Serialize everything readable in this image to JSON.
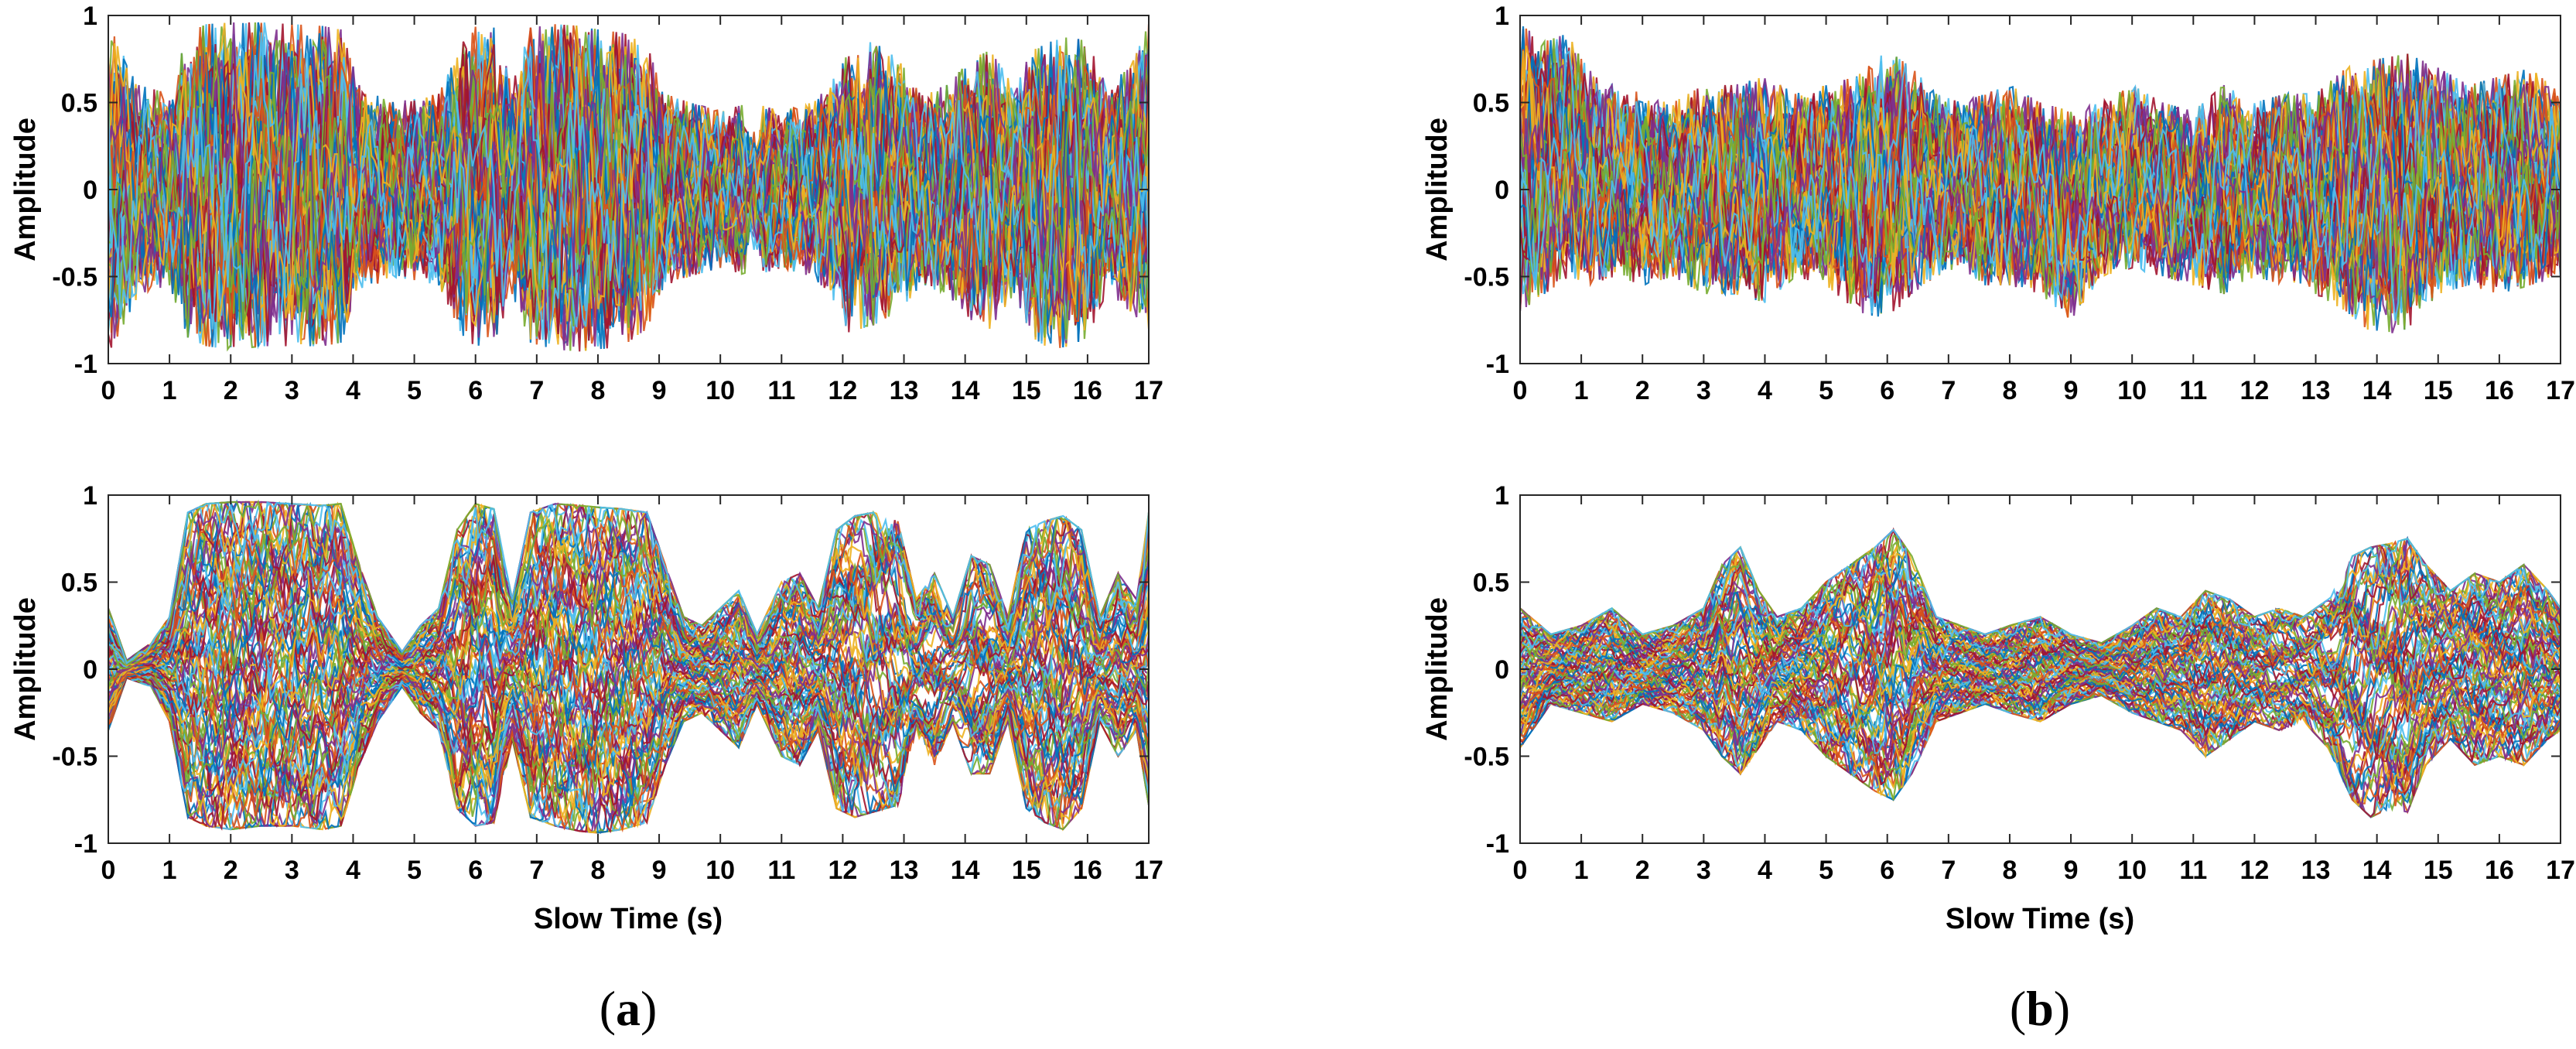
{
  "chart_data": [
    {
      "type": "line",
      "panel": "a-top",
      "ylabel": "Amplitude",
      "xlabel": "",
      "xlim": [
        0,
        17
      ],
      "ylim": [
        -1,
        1
      ],
      "xticks": [
        0,
        1,
        2,
        3,
        4,
        5,
        6,
        7,
        8,
        9,
        10,
        11,
        12,
        13,
        14,
        15,
        16,
        17
      ],
      "yticks": [
        -1,
        -0.5,
        0,
        0.5,
        1
      ],
      "grid": false,
      "envelope": {
        "x": [
          0,
          0.5,
          1,
          1.3,
          1.6,
          2,
          2.5,
          3,
          3.5,
          3.8,
          4.1,
          4.6,
          5,
          5.4,
          5.8,
          6,
          6.3,
          6.6,
          6.9,
          7.3,
          7.7,
          8,
          8.4,
          8.8,
          9.1,
          9.5,
          10,
          10.5,
          11,
          11.5,
          11.8,
          12.1,
          12.5,
          12.9,
          13.3,
          13.7,
          14.1,
          14.4,
          14.8,
          15.1,
          15.4,
          15.7,
          16,
          16.3,
          16.7,
          17
        ],
        "upper": [
          0.95,
          0.6,
          0.55,
          0.9,
          0.95,
          0.96,
          0.96,
          0.95,
          0.94,
          0.92,
          0.6,
          0.5,
          0.52,
          0.55,
          0.85,
          0.95,
          0.93,
          0.6,
          0.93,
          0.95,
          0.94,
          0.92,
          0.9,
          0.85,
          0.55,
          0.5,
          0.45,
          0.5,
          0.45,
          0.5,
          0.6,
          0.82,
          0.85,
          0.75,
          0.55,
          0.6,
          0.75,
          0.8,
          0.6,
          0.8,
          0.85,
          0.88,
          0.85,
          0.6,
          0.7,
          0.95
        ],
        "lower": [
          -0.95,
          -0.6,
          -0.55,
          -0.85,
          -0.9,
          -0.92,
          -0.9,
          -0.9,
          -0.9,
          -0.88,
          -0.6,
          -0.5,
          -0.52,
          -0.55,
          -0.85,
          -0.9,
          -0.88,
          -0.6,
          -0.88,
          -0.92,
          -0.93,
          -0.92,
          -0.9,
          -0.8,
          -0.55,
          -0.5,
          -0.45,
          -0.5,
          -0.45,
          -0.5,
          -0.6,
          -0.82,
          -0.78,
          -0.7,
          -0.55,
          -0.6,
          -0.75,
          -0.8,
          -0.6,
          -0.85,
          -0.92,
          -0.9,
          -0.85,
          -0.6,
          -0.7,
          -0.8
        ]
      }
    },
    {
      "type": "line",
      "panel": "a-bottom",
      "ylabel": "Amplitude",
      "xlabel": "Slow Time (s)",
      "xlim": [
        0,
        17
      ],
      "ylim": [
        -1,
        1
      ],
      "xticks": [
        0,
        1,
        2,
        3,
        4,
        5,
        6,
        7,
        8,
        9,
        10,
        11,
        12,
        13,
        14,
        15,
        16,
        17
      ],
      "yticks": [
        -1,
        -0.5,
        0,
        0.5,
        1
      ],
      "grid": false,
      "envelope": {
        "x": [
          0,
          0.3,
          0.7,
          1,
          1.3,
          1.6,
          2,
          2.5,
          3,
          3.5,
          3.8,
          4.1,
          4.4,
          4.8,
          5.1,
          5.4,
          5.7,
          6,
          6.3,
          6.6,
          6.9,
          7.3,
          7.7,
          8,
          8.4,
          8.8,
          9.1,
          9.4,
          9.7,
          10,
          10.3,
          10.6,
          11,
          11.3,
          11.6,
          11.9,
          12.2,
          12.5,
          12.9,
          13.2,
          13.5,
          13.8,
          14.1,
          14.4,
          14.7,
          15,
          15.3,
          15.6,
          15.9,
          16.2,
          16.5,
          16.8,
          17
        ],
        "upper": [
          0.35,
          0.05,
          0.15,
          0.3,
          0.9,
          0.95,
          0.96,
          0.96,
          0.95,
          0.94,
          0.95,
          0.6,
          0.3,
          0.1,
          0.25,
          0.35,
          0.8,
          0.95,
          0.92,
          0.4,
          0.9,
          0.95,
          0.94,
          0.93,
          0.92,
          0.9,
          0.6,
          0.3,
          0.25,
          0.35,
          0.45,
          0.2,
          0.5,
          0.55,
          0.35,
          0.8,
          0.88,
          0.9,
          0.85,
          0.4,
          0.55,
          0.3,
          0.65,
          0.6,
          0.3,
          0.8,
          0.85,
          0.88,
          0.8,
          0.3,
          0.55,
          0.4,
          0.9
        ],
        "lower": [
          -0.35,
          -0.05,
          -0.1,
          -0.3,
          -0.85,
          -0.9,
          -0.92,
          -0.9,
          -0.9,
          -0.92,
          -0.9,
          -0.55,
          -0.3,
          -0.1,
          -0.25,
          -0.35,
          -0.8,
          -0.9,
          -0.88,
          -0.4,
          -0.85,
          -0.9,
          -0.93,
          -0.94,
          -0.92,
          -0.88,
          -0.55,
          -0.3,
          -0.25,
          -0.35,
          -0.45,
          -0.2,
          -0.5,
          -0.55,
          -0.35,
          -0.8,
          -0.85,
          -0.82,
          -0.78,
          -0.4,
          -0.55,
          -0.3,
          -0.6,
          -0.6,
          -0.3,
          -0.8,
          -0.88,
          -0.92,
          -0.8,
          -0.3,
          -0.5,
          -0.35,
          -0.78
        ]
      }
    },
    {
      "type": "line",
      "panel": "b-top",
      "ylabel": "Amplitude",
      "xlabel": "",
      "xlim": [
        0,
        17
      ],
      "ylim": [
        -1,
        1
      ],
      "xticks": [
        0,
        1,
        2,
        3,
        4,
        5,
        6,
        7,
        8,
        9,
        10,
        11,
        12,
        13,
        14,
        15,
        16,
        17
      ],
      "yticks": [
        -1,
        -0.5,
        0,
        0.5,
        1
      ],
      "grid": false,
      "envelope": {
        "x": [
          0,
          0.4,
          0.8,
          1.2,
          1.6,
          2,
          2.5,
          3,
          3.5,
          4,
          4.5,
          5,
          5.5,
          6,
          6.4,
          6.8,
          7.2,
          7.6,
          8,
          8.5,
          9,
          9.5,
          10,
          10.5,
          11,
          11.5,
          12,
          12.5,
          13,
          13.5,
          14,
          14.5,
          15,
          15.5,
          16,
          16.5,
          17
        ],
        "upper": [
          0.95,
          0.85,
          0.9,
          0.65,
          0.6,
          0.55,
          0.5,
          0.6,
          0.6,
          0.65,
          0.55,
          0.6,
          0.65,
          0.8,
          0.7,
          0.55,
          0.5,
          0.55,
          0.6,
          0.5,
          0.45,
          0.5,
          0.6,
          0.5,
          0.45,
          0.6,
          0.5,
          0.55,
          0.55,
          0.7,
          0.75,
          0.78,
          0.7,
          0.6,
          0.65,
          0.7,
          0.55
        ],
        "lower": [
          -0.7,
          -0.6,
          -0.5,
          -0.55,
          -0.5,
          -0.55,
          -0.5,
          -0.6,
          -0.6,
          -0.65,
          -0.5,
          -0.55,
          -0.7,
          -0.75,
          -0.6,
          -0.5,
          -0.45,
          -0.55,
          -0.55,
          -0.6,
          -0.75,
          -0.5,
          -0.45,
          -0.5,
          -0.55,
          -0.6,
          -0.5,
          -0.55,
          -0.6,
          -0.7,
          -0.85,
          -0.8,
          -0.6,
          -0.55,
          -0.6,
          -0.55,
          -0.5
        ]
      }
    },
    {
      "type": "line",
      "panel": "b-bottom",
      "ylabel": "Amplitude",
      "xlabel": "Slow Time (s)",
      "xlim": [
        0,
        17
      ],
      "ylim": [
        -1,
        1
      ],
      "xticks": [
        0,
        1,
        2,
        3,
        4,
        5,
        6,
        7,
        8,
        9,
        10,
        11,
        12,
        13,
        14,
        15,
        16,
        17
      ],
      "yticks": [
        -1,
        -0.5,
        0,
        0.5,
        1
      ],
      "grid": false,
      "envelope": {
        "x": [
          0,
          0.5,
          1,
          1.5,
          2,
          2.5,
          3,
          3.3,
          3.6,
          3.9,
          4.2,
          4.6,
          5,
          5.4,
          5.8,
          6.1,
          6.4,
          6.8,
          7.2,
          7.6,
          8,
          8.5,
          9,
          9.5,
          10,
          10.4,
          10.8,
          11.2,
          11.6,
          12,
          12.4,
          12.8,
          13.2,
          13.6,
          13.9,
          14.2,
          14.5,
          14.8,
          15.2,
          15.6,
          16,
          16.4,
          16.8,
          17
        ],
        "upper": [
          0.35,
          0.2,
          0.25,
          0.35,
          0.2,
          0.25,
          0.35,
          0.6,
          0.7,
          0.45,
          0.3,
          0.35,
          0.5,
          0.6,
          0.7,
          0.8,
          0.65,
          0.3,
          0.25,
          0.2,
          0.25,
          0.3,
          0.2,
          0.15,
          0.25,
          0.35,
          0.3,
          0.45,
          0.4,
          0.3,
          0.35,
          0.3,
          0.4,
          0.65,
          0.7,
          0.72,
          0.75,
          0.6,
          0.45,
          0.55,
          0.5,
          0.6,
          0.45,
          0.35
        ],
        "lower": [
          -0.45,
          -0.2,
          -0.25,
          -0.3,
          -0.2,
          -0.25,
          -0.35,
          -0.5,
          -0.6,
          -0.45,
          -0.3,
          -0.35,
          -0.5,
          -0.6,
          -0.7,
          -0.75,
          -0.6,
          -0.3,
          -0.25,
          -0.2,
          -0.25,
          -0.3,
          -0.2,
          -0.15,
          -0.25,
          -0.3,
          -0.35,
          -0.5,
          -0.4,
          -0.3,
          -0.35,
          -0.3,
          -0.45,
          -0.75,
          -0.85,
          -0.8,
          -0.82,
          -0.55,
          -0.4,
          -0.55,
          -0.5,
          -0.55,
          -0.4,
          -0.35
        ]
      }
    }
  ],
  "palette": [
    "#0072BD",
    "#D95319",
    "#EDB120",
    "#7E2F8E",
    "#77AC30",
    "#4DBEEE",
    "#A2142F"
  ],
  "captions": [
    {
      "open": "(",
      "letter": "a",
      "close": ")"
    },
    {
      "open": "(",
      "letter": "b",
      "close": ")"
    }
  ]
}
